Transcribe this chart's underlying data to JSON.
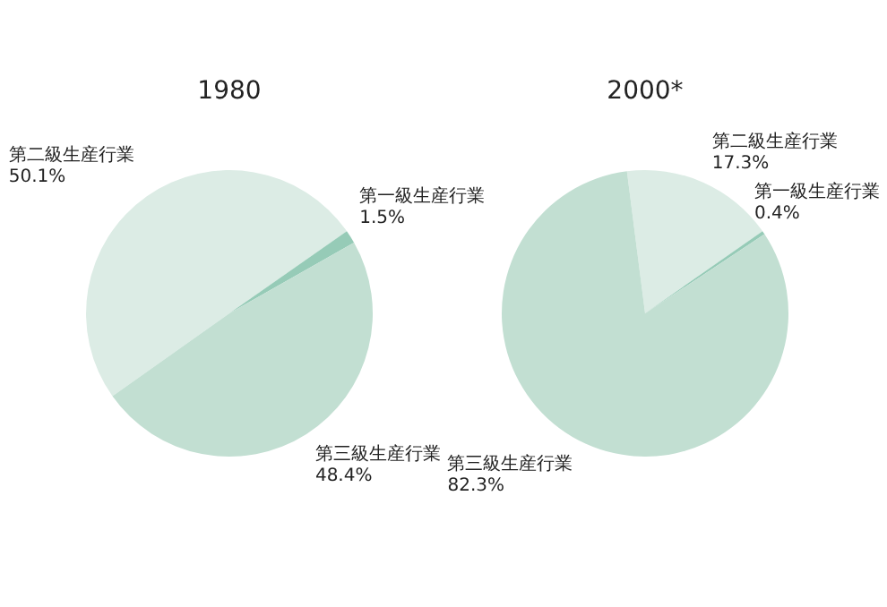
{
  "chart_data": [
    {
      "type": "pie",
      "title": "1980",
      "categories": [
        "第二級生産行業",
        "第一級生産行業",
        "第三級生産行業"
      ],
      "values": [
        50.1,
        1.5,
        48.4
      ],
      "value_labels": [
        "50.1%",
        "1.5%",
        "48.4%"
      ],
      "colors": [
        "#dcece5",
        "#96cbb7",
        "#c2dfd2"
      ]
    },
    {
      "type": "pie",
      "title": "2000*",
      "categories": [
        "第二級生産行業",
        "第一級生産行業",
        "第三級生産行業"
      ],
      "values": [
        17.3,
        0.4,
        82.3
      ],
      "value_labels": [
        "17.3%",
        "0.4%",
        "82.3%"
      ],
      "colors": [
        "#dcece5",
        "#96cbb7",
        "#c2dfd2"
      ]
    }
  ]
}
